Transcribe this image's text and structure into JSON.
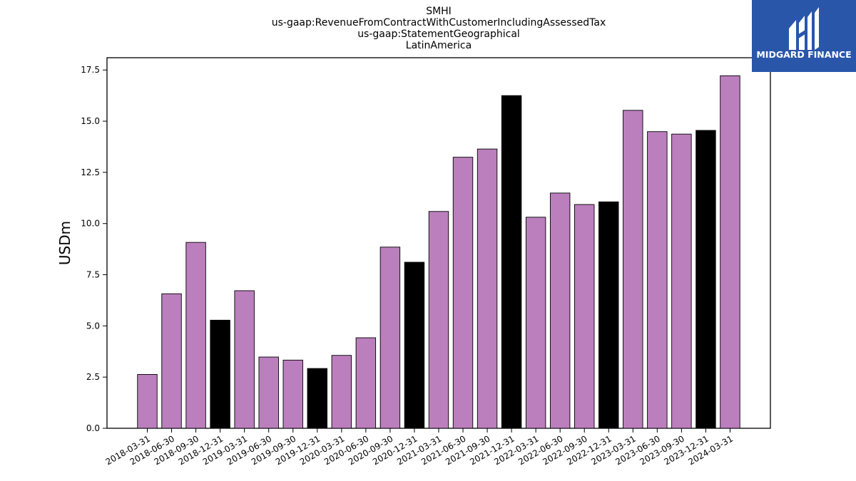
{
  "logo": {
    "text": "MIDGARD FINANCE",
    "background": "#2a56aa"
  },
  "chart_data": {
    "type": "bar",
    "title_lines": [
      "SMHI",
      "us-gaap:RevenueFromContractWithCustomerIncludingAssessedTax",
      "us-gaap:StatementGeographical",
      "LatinAmerica"
    ],
    "xlabel": "",
    "ylabel": "USDm",
    "ylim": [
      0,
      18.1
    ],
    "yticks": [
      0.0,
      2.5,
      5.0,
      7.5,
      10.0,
      12.5,
      15.0,
      17.5
    ],
    "ytick_labels": [
      "0.0",
      "2.5",
      "5.0",
      "7.5",
      "10.0",
      "12.5",
      "15.0",
      "17.5"
    ],
    "grid": false,
    "categories": [
      "2018-03-31",
      "2018-06-30",
      "2018-09-30",
      "2018-12-31",
      "2019-03-31",
      "2019-06-30",
      "2019-09-30",
      "2019-12-31",
      "2020-03-31",
      "2020-06-30",
      "2020-09-30",
      "2020-12-31",
      "2021-03-31",
      "2021-06-30",
      "2021-09-30",
      "2021-12-31",
      "2022-03-31",
      "2022-06-30",
      "2022-09-30",
      "2022-12-31",
      "2023-03-31",
      "2023-06-30",
      "2023-09-30",
      "2023-12-31",
      "2024-03-31"
    ],
    "values": [
      2.63,
      6.57,
      9.08,
      5.28,
      6.72,
      3.48,
      3.33,
      2.92,
      3.56,
      4.42,
      8.85,
      8.11,
      10.59,
      13.24,
      13.64,
      16.25,
      10.31,
      11.49,
      10.93,
      11.06,
      15.53,
      14.49,
      14.37,
      14.55,
      17.22
    ],
    "bar_colors": [
      "#bb7fbd",
      "#bb7fbd",
      "#bb7fbd",
      "#000000",
      "#bb7fbd",
      "#bb7fbd",
      "#bb7fbd",
      "#000000",
      "#bb7fbd",
      "#bb7fbd",
      "#bb7fbd",
      "#000000",
      "#bb7fbd",
      "#bb7fbd",
      "#bb7fbd",
      "#000000",
      "#bb7fbd",
      "#bb7fbd",
      "#bb7fbd",
      "#000000",
      "#bb7fbd",
      "#bb7fbd",
      "#bb7fbd",
      "#000000",
      "#bb7fbd"
    ],
    "colors": {
      "quarter": "#bb7fbd",
      "year_end": "#000000",
      "bar_edge": "#000000"
    }
  }
}
